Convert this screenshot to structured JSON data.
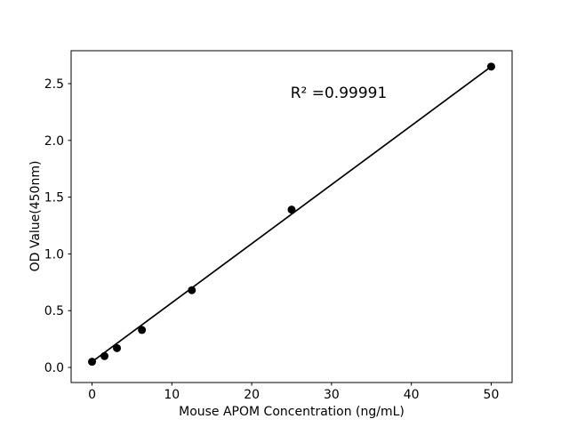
{
  "window": {
    "background": "#ffffff"
  },
  "chart_data": {
    "type": "scatter",
    "title": "",
    "xlabel": "Mouse APOM Concentration (ng/mL)",
    "ylabel": "OD Value(450nm)",
    "annotation": "R² =0.99991",
    "x": [
      0,
      1.56,
      3.12,
      6.25,
      12.5,
      25,
      50
    ],
    "y": [
      0.05,
      0.1,
      0.17,
      0.33,
      0.68,
      1.39,
      2.65
    ],
    "fit_line": {
      "x": [
        0,
        50
      ],
      "y": [
        0.05,
        2.65
      ]
    },
    "xlim": [
      -2.62,
      52.62
    ],
    "ylim": [
      -0.133,
      2.79
    ],
    "xticks": [
      0,
      10,
      20,
      30,
      40,
      50
    ],
    "xtick_labels": [
      "0",
      "10",
      "20",
      "30",
      "40",
      "50"
    ],
    "yticks": [
      0,
      0.5,
      1.0,
      1.5,
      2.0,
      2.5
    ],
    "ytick_labels": [
      "0.0",
      "0.5",
      "1.0",
      "1.5",
      "2.0",
      "2.5"
    ],
    "grid": false,
    "legend": false,
    "legend_position": null,
    "colors": {
      "marker": "#000000",
      "line": "#000000",
      "axis": "#000000",
      "text": "#000000",
      "background": "#ffffff"
    }
  }
}
